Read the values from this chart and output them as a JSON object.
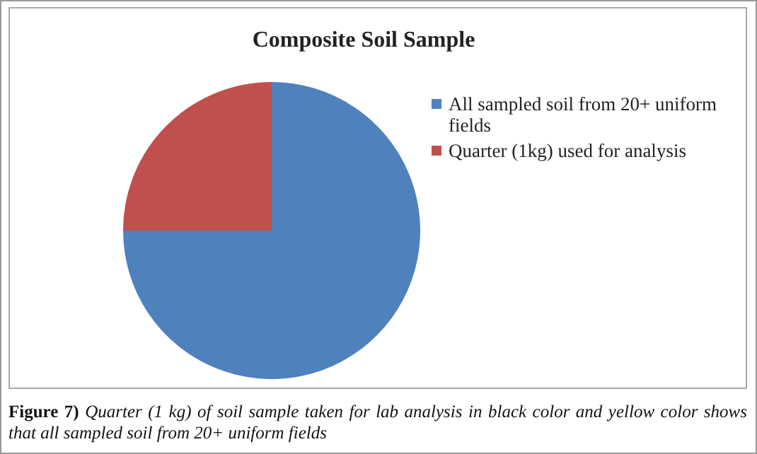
{
  "chart_data": {
    "type": "pie",
    "title": "Composite Soil Sample",
    "categories": [
      "All sampled soil from 20+ uniform fields",
      "Quarter (1kg) used for analysis"
    ],
    "values": [
      75,
      25
    ],
    "colors": [
      "#4f81bd",
      "#c0504d"
    ],
    "legend": "right",
    "annotations": [
      "Figure 7)",
      "Quarter (1 kg) of soil sample taken for lab analysis in black color and yellow color shows that all sampled soil from 20+ uniform fields"
    ]
  }
}
